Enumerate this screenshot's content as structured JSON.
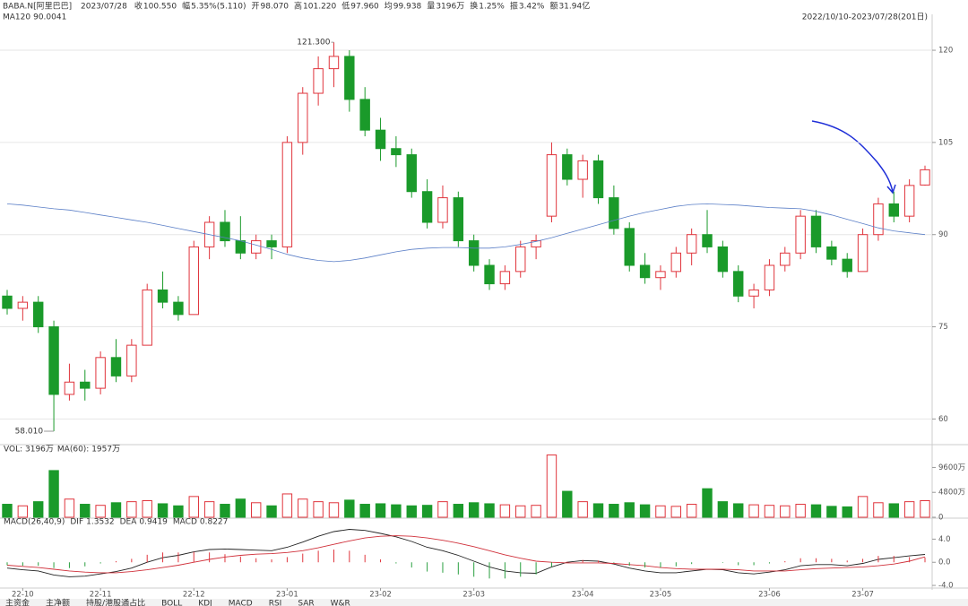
{
  "header": {
    "symbol": "BABA.N[阿里巴巴]",
    "date": "2023/07/28",
    "items": [
      {
        "label": "收",
        "value": "100.550"
      },
      {
        "label": "幅",
        "value": "5.35%(5.110)"
      },
      {
        "label": "开",
        "value": "98.070"
      },
      {
        "label": "高",
        "value": "101.220"
      },
      {
        "label": "低",
        "value": "97.960"
      },
      {
        "label": "均",
        "value": "99.938"
      },
      {
        "label": "量",
        "value": "3196万"
      },
      {
        "label": "换",
        "value": "1.25%"
      },
      {
        "label": "振",
        "value": "3.42%"
      },
      {
        "label": "额",
        "value": "31.94亿"
      }
    ],
    "range": "2022/10/10-2023/07/28(201日)"
  },
  "tabs": [
    "主资金",
    "主净额",
    "持股/港股通占比",
    "BOLL",
    "KDJ",
    "MACD",
    "RSI",
    "SAR",
    "W&R"
  ],
  "chart_data": [
    {
      "type": "candlestick",
      "max_label": "121.300",
      "min_label": "58.010",
      "up_color": "#e0343c",
      "down_color": "#1a9a2a",
      "open": [
        80,
        78,
        79,
        75,
        64,
        66,
        65,
        70,
        67,
        72,
        81,
        79,
        77,
        88,
        92,
        89,
        87,
        89,
        88,
        105,
        113,
        117,
        119,
        112,
        107,
        104,
        103,
        97,
        92,
        96,
        89,
        85,
        82,
        84,
        88,
        93,
        103,
        99,
        102,
        96,
        91,
        85,
        83,
        84,
        87,
        90,
        88,
        84,
        80,
        81,
        85,
        87,
        93,
        88,
        86,
        84,
        90,
        95,
        93,
        98.07
      ],
      "high": [
        81,
        80,
        80,
        76,
        69,
        68,
        71,
        73,
        73,
        82,
        84,
        80,
        89,
        93,
        94,
        93,
        90,
        90,
        106,
        114,
        119,
        121.3,
        120,
        114,
        109,
        106,
        104,
        99,
        98,
        97,
        90,
        86,
        85,
        89,
        90,
        105,
        104,
        103,
        103,
        98,
        92,
        87,
        85,
        88,
        91,
        94,
        89,
        85,
        82,
        86,
        88,
        94,
        94,
        89,
        87,
        91,
        96,
        97,
        99,
        101.22
      ],
      "low": [
        77,
        76,
        74,
        58.01,
        63,
        63,
        64,
        66,
        66,
        72,
        78,
        76,
        77,
        86,
        88,
        86,
        86,
        86,
        87,
        103,
        111,
        114,
        110,
        106,
        102,
        101,
        96,
        91,
        91,
        88,
        84,
        81,
        81,
        83,
        86,
        92,
        98,
        96,
        95,
        90,
        84,
        82,
        81,
        83,
        85,
        87,
        83,
        79,
        78,
        80,
        84,
        86,
        87,
        85,
        83,
        84,
        89,
        92,
        92,
        97.96
      ],
      "close": [
        78,
        79,
        75,
        64,
        66,
        65,
        70,
        67,
        72,
        81,
        79,
        77,
        88,
        92,
        89,
        87,
        89,
        88,
        105,
        113,
        117,
        119,
        112,
        107,
        104,
        103,
        97,
        92,
        96,
        89,
        85,
        82,
        84,
        88,
        89,
        103,
        99,
        102,
        96,
        91,
        85,
        83,
        84,
        87,
        90,
        88,
        84,
        80,
        81,
        85,
        87,
        93,
        88,
        86,
        84,
        90,
        95,
        93,
        98,
        100.55
      ],
      "series": [
        {
          "name": "MA120",
          "value_label": "90.0041",
          "color": "#5b7fc7",
          "values": [
            95,
            94.8,
            94.5,
            94.2,
            94,
            93.6,
            93.2,
            92.8,
            92.4,
            92,
            91.5,
            91,
            90.5,
            90,
            89.5,
            89,
            88.3,
            87.6,
            86.8,
            86.2,
            85.8,
            85.6,
            85.8,
            86.2,
            86.7,
            87.2,
            87.6,
            87.8,
            87.9,
            87.9,
            87.8,
            87.8,
            88,
            88.4,
            88.9,
            89.5,
            90.2,
            90.9,
            91.6,
            92.3,
            93,
            93.6,
            94.1,
            94.6,
            94.9,
            95,
            94.9,
            94.8,
            94.6,
            94.4,
            94.3,
            94.2,
            93.8,
            93.2,
            92.5,
            91.8,
            91.1,
            90.6,
            90.3,
            90.0041
          ]
        }
      ],
      "ylim": [
        56.7,
        123.8
      ],
      "yticks": [
        60,
        75,
        90,
        105,
        120
      ],
      "grid": true
    },
    {
      "type": "bar",
      "title": "VOL: 3196万",
      "subtitle": "MA(60): 1957万",
      "ylim": [
        0,
        12440
      ],
      "yticks": [
        0,
        {
          "value": 4800,
          "label": "4800万"
        },
        {
          "value": 9600,
          "label": "9600万"
        }
      ],
      "values": [
        2500,
        2200,
        3000,
        9000,
        3500,
        2500,
        2300,
        2800,
        3000,
        3200,
        2600,
        2200,
        4000,
        3000,
        2500,
        3500,
        2800,
        2200,
        4500,
        3500,
        3000,
        2800,
        3300,
        2500,
        2600,
        2400,
        2200,
        2300,
        3000,
        2500,
        2800,
        2600,
        2400,
        2200,
        2300,
        12000,
        5000,
        3000,
        2600,
        2500,
        2800,
        2400,
        2200,
        2100,
        2500,
        5500,
        3000,
        2600,
        2400,
        2300,
        2200,
        2500,
        2400,
        2100,
        2000,
        4000,
        2800,
        2600,
        3000,
        3196
      ]
    },
    {
      "type": "macd",
      "title": "MACD(26,40,9)",
      "ylim": [
        -4.3,
        6.08
      ],
      "yticks": [
        {
          "value": -4,
          "label": "-4.0"
        },
        {
          "value": 0,
          "label": "0.0"
        },
        {
          "value": 4,
          "label": "4.0"
        }
      ],
      "categories": [
        null,
        "22-10",
        null,
        null,
        null,
        null,
        "22-11",
        null,
        null,
        null,
        null,
        null,
        "22-12",
        null,
        null,
        null,
        null,
        null,
        "23-01",
        null,
        null,
        null,
        null,
        null,
        "23-02",
        null,
        null,
        null,
        null,
        null,
        "23-03",
        null,
        null,
        null,
        null,
        null,
        null,
        "23-04",
        null,
        null,
        null,
        null,
        "23-05",
        null,
        null,
        null,
        null,
        null,
        null,
        "23-06",
        null,
        null,
        null,
        null,
        null,
        "23-07",
        null,
        null,
        null,
        null
      ],
      "series": [
        {
          "name": "DIF",
          "value_label": "1.3532",
          "color": "#222222",
          "values": [
            -1.0,
            -1.3,
            -1.5,
            -2.2,
            -2.5,
            -2.4,
            -2.0,
            -1.6,
            -1.0,
            0.0,
            0.8,
            1.2,
            1.8,
            2.2,
            2.3,
            2.2,
            2.1,
            2.0,
            2.6,
            3.5,
            4.5,
            5.3,
            5.7,
            5.5,
            5.0,
            4.4,
            3.6,
            2.6,
            2.0,
            1.2,
            0.2,
            -0.8,
            -1.5,
            -1.8,
            -1.9,
            -0.8,
            0.0,
            0.3,
            0.2,
            -0.3,
            -1.0,
            -1.5,
            -1.8,
            -1.8,
            -1.5,
            -1.2,
            -1.3,
            -1.8,
            -2.0,
            -1.7,
            -1.3,
            -0.6,
            -0.4,
            -0.4,
            -0.6,
            -0.2,
            0.5,
            0.8,
            1.1,
            1.3532
          ]
        },
        {
          "name": "DEA",
          "value_label": "0.9419",
          "color": "#d0303a",
          "values": [
            -0.5,
            -0.7,
            -0.9,
            -1.2,
            -1.5,
            -1.7,
            -1.8,
            -1.8,
            -1.6,
            -1.3,
            -0.9,
            -0.5,
            0.0,
            0.5,
            0.9,
            1.2,
            1.4,
            1.5,
            1.7,
            2.0,
            2.5,
            3.1,
            3.7,
            4.2,
            4.5,
            4.6,
            4.5,
            4.2,
            3.8,
            3.3,
            2.7,
            2.0,
            1.3,
            0.7,
            0.2,
            0.0,
            -0.1,
            -0.1,
            -0.1,
            -0.2,
            -0.4,
            -0.6,
            -0.9,
            -1.1,
            -1.2,
            -1.2,
            -1.2,
            -1.3,
            -1.5,
            -1.5,
            -1.5,
            -1.3,
            -1.1,
            -1.0,
            -0.9,
            -0.8,
            -0.6,
            -0.3,
            0.2,
            0.9419
          ]
        },
        {
          "name": "MACD",
          "value_label": "0.8227",
          "type": "bar",
          "color": "#2aa040",
          "values": [
            -0.5,
            -0.6,
            -0.6,
            -1.0,
            -1.0,
            -0.7,
            -0.2,
            0.2,
            0.6,
            1.3,
            1.7,
            1.7,
            1.8,
            1.7,
            1.4,
            1.0,
            0.7,
            0.5,
            0.9,
            1.5,
            2.0,
            2.2,
            2.0,
            1.3,
            0.5,
            -0.2,
            -0.9,
            -1.6,
            -1.8,
            -2.1,
            -2.5,
            -2.8,
            -2.8,
            -2.5,
            -2.1,
            -0.8,
            0.1,
            0.4,
            0.3,
            -0.1,
            -0.6,
            -0.9,
            -0.9,
            -0.7,
            -0.3,
            0.0,
            -0.1,
            -0.5,
            -0.5,
            -0.2,
            0.2,
            0.7,
            0.7,
            0.6,
            0.3,
            0.6,
            1.1,
            1.1,
            0.9,
            0.8227
          ]
        }
      ]
    }
  ]
}
